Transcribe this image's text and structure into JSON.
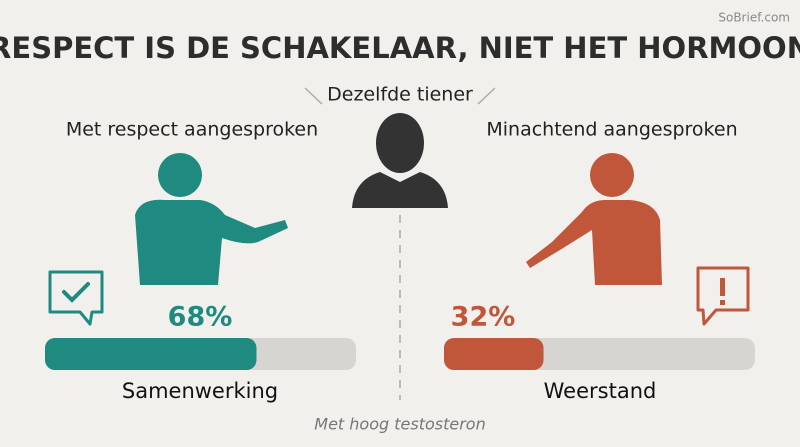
{
  "chart_data": {
    "type": "bar",
    "title": "RESPECT IS DE SCHAKELAAR, NIET HET HORMOON",
    "source": "SoBrief.com",
    "center_label": "Dezelfde tiener",
    "footnote": "Met hoog testosteron",
    "headings": [
      "Met respect aangesproken",
      "Minachtend aangesproken"
    ],
    "categories": [
      "Samenwerking",
      "Weerstand"
    ],
    "values": [
      68,
      32
    ],
    "value_labels": [
      "68%",
      "32%"
    ],
    "colors": [
      "#1f8a80",
      "#c1573a"
    ],
    "xlim": [
      0,
      100
    ]
  }
}
